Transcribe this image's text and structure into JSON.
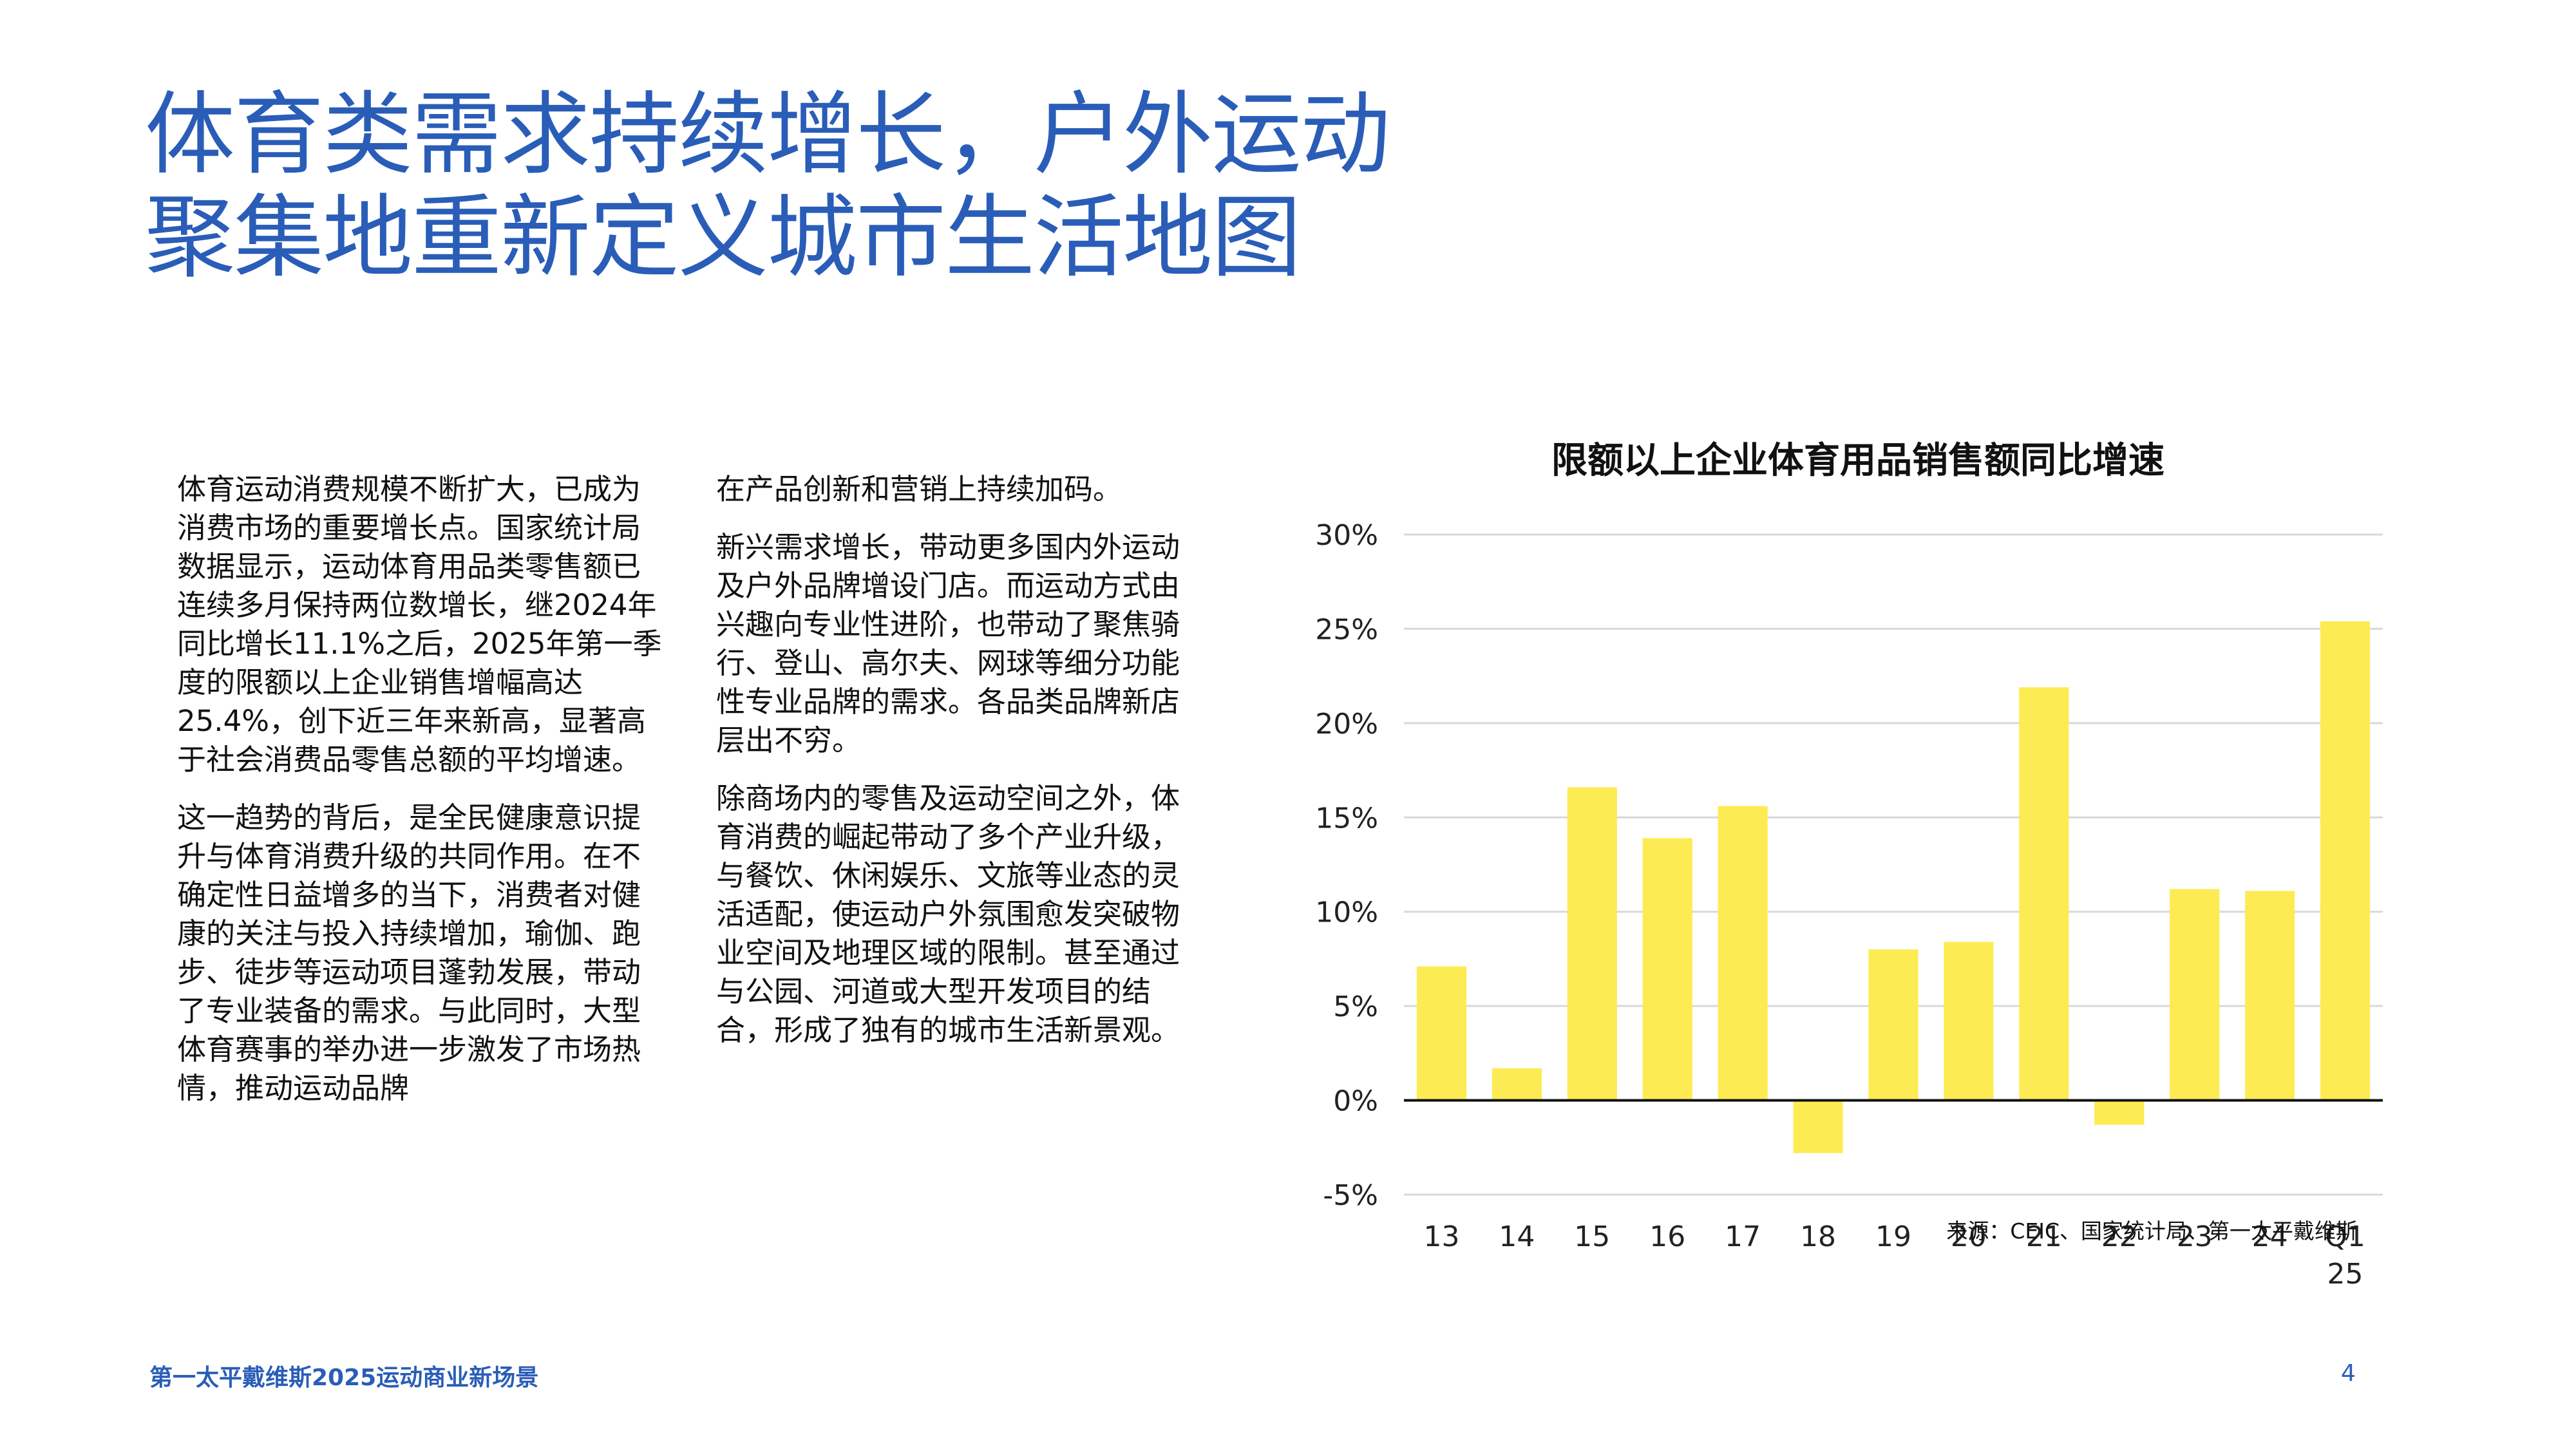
{
  "page": {
    "title_line1": "体育类需求持续增长，户外运动",
    "title_line2": "聚集地重新定义城市生活地图"
  },
  "body": {
    "col1": [
      "体育运动消费规模不断扩大，已成为消费市场的重要增长点。国家统计局数据显示，运动体育用品类零售额已连续多月保持两位数增长，继2024年同比增长11.1%之后，2025年第一季度的限额以上企业销售增幅高达25.4%，创下近三年来新高，显著高于社会消费品零售总额的平均增速。",
      "这一趋势的背后，是全民健康意识提升与体育消费升级的共同作用。在不确定性日益增多的当下，消费者对健康的关注与投入持续增加，瑜伽、跑步、徒步等运动项目蓬勃发展，带动了专业装备的需求。与此同时，大型体育赛事的举办进一步激发了市场热情，推动运动品牌"
    ],
    "col2": [
      "在产品创新和营销上持续加码。",
      "新兴需求增长，带动更多国内外运动及户外品牌增设门店。而运动方式由兴趣向专业性进阶，也带动了聚焦骑行、登山、高尔夫、网球等细分功能性专业品牌的需求。各品类品牌新店层出不穷。",
      "除商场内的零售及运动空间之外，体育消费的崛起带动了多个产业升级，与餐饮、休闲娱乐、文旅等业态的灵活适配，使运动户外氛围愈发突破物业空间及地理区域的限制。甚至通过与公园、河道或大型开发项目的结合，形成了独有的城市生活新景观。"
    ]
  },
  "chart_data": {
    "type": "bar",
    "title": "限额以上企业体育用品销售额同比增速",
    "categories": [
      "13",
      "14",
      "15",
      "16",
      "17",
      "18",
      "19",
      "20",
      "21",
      "22",
      "23",
      "24",
      "Q1\n25"
    ],
    "values": [
      7.1,
      1.7,
      16.6,
      13.9,
      15.6,
      -2.8,
      8.0,
      8.4,
      21.9,
      -1.3,
      11.2,
      11.1,
      25.4
    ],
    "ylim": [
      -5,
      30
    ],
    "yticks": [
      -5,
      0,
      5,
      10,
      15,
      20,
      25,
      30
    ],
    "ytick_format": "%",
    "xlabel": "",
    "ylabel": "",
    "grid": true,
    "bar_color": "#fdeb53"
  },
  "source": "来源：CEIC、国家统计局、第一太平戴维斯",
  "footer": {
    "left": "第一太平戴维斯2025运动商业新场景",
    "page_number": "4"
  },
  "colors": {
    "accent": "#2a5db8",
    "bar": "#fdeb53"
  }
}
